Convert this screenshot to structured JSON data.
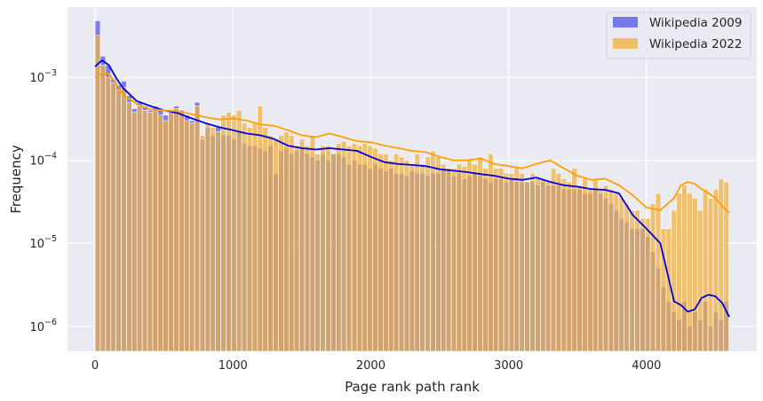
{
  "chart_data": {
    "type": "histogram",
    "title": "",
    "xlabel": "Page rank path rank",
    "ylabel": "Frequency",
    "xlim": [
      -200,
      4800
    ],
    "ylim": [
      5e-07,
      0.007
    ],
    "yscale": "log",
    "grid": true,
    "legend_placement": "top-right",
    "x_ticks": [
      {
        "value": 0,
        "label": "0"
      },
      {
        "value": 1000,
        "label": "1000"
      },
      {
        "value": 2000,
        "label": "2000"
      },
      {
        "value": 3000,
        "label": "3000"
      },
      {
        "value": 4000,
        "label": "4000"
      }
    ],
    "y_ticks": [
      {
        "value": 1e-06,
        "base": "10",
        "exp": "−6"
      },
      {
        "value": 1e-05,
        "base": "10",
        "exp": "−5"
      },
      {
        "value": 0.0001,
        "base": "10",
        "exp": "−4"
      },
      {
        "value": 0.001,
        "base": "10",
        "exp": "−3"
      }
    ],
    "bins": {
      "start": 0,
      "width": 38,
      "count": 121
    },
    "series": [
      {
        "name": "Wikipedia 2009",
        "color": "#6a6af0",
        "line_color": "#0000e0",
        "values": [
          0.0048,
          0.0018,
          0.0014,
          0.00095,
          0.0008,
          0.0009,
          0.0006,
          0.00042,
          0.0005,
          0.00045,
          0.0004,
          0.00045,
          0.0004,
          0.00035,
          0.0004,
          0.00045,
          0.0004,
          0.00035,
          0.0003,
          0.0005,
          0.00018,
          0.00025,
          0.0002,
          0.00025,
          0.0002,
          0.0002,
          0.00018,
          0.00022,
          0.00016,
          0.00015,
          0.00015,
          0.00014,
          0.00013,
          0.00015,
          7e-05,
          0.00013,
          0.00014,
          0.00012,
          0.00013,
          0.00014,
          0.00012,
          0.00011,
          0.0001,
          0.00012,
          0.0001,
          0.00012,
          0.00012,
          0.00011,
          9e-05,
          0.0001,
          9e-05,
          9e-05,
          8e-05,
          9e-05,
          8e-05,
          7.5e-05,
          8e-05,
          7e-05,
          7e-05,
          6.5e-05,
          7.5e-05,
          7e-05,
          7e-05,
          6.5e-05,
          7e-05,
          7e-05,
          8e-05,
          8e-05,
          6.5e-05,
          7e-05,
          6e-05,
          6.5e-05,
          7e-05,
          6.5e-05,
          6e-05,
          5.5e-05,
          6e-05,
          6e-05,
          5.5e-05,
          6e-05,
          5.5e-05,
          5.5e-05,
          5.5e-05,
          5.5e-05,
          5e-05,
          5.5e-05,
          5e-05,
          5e-05,
          5e-05,
          4.5e-05,
          4.5e-05,
          4.5e-05,
          4.5e-05,
          4e-05,
          4e-05,
          4.5e-05,
          4e-05,
          3.5e-05,
          3e-05,
          2.5e-05,
          2e-05,
          1.8e-05,
          1.5e-05,
          1.5e-05,
          1.5e-05,
          1.2e-05,
          8e-06,
          5e-06,
          3e-06,
          2e-06,
          1.5e-06,
          1.2e-06,
          2e-06,
          1e-06,
          1.5e-06,
          1.2e-06,
          2e-06,
          1e-06,
          1.5e-06,
          1.2e-06,
          2e-06
        ]
      },
      {
        "name": "Wikipedia 2022",
        "color": "#f0b240",
        "line_color": "#ffa000",
        "values": [
          0.0032,
          0.0014,
          0.001,
          0.00085,
          0.0007,
          0.00075,
          0.0005,
          0.00038,
          0.00045,
          0.0004,
          0.00038,
          0.0004,
          0.00035,
          0.0003,
          0.00038,
          0.00042,
          0.00038,
          0.0003,
          0.00028,
          0.00045,
          0.0002,
          0.00028,
          0.00025,
          0.00022,
          0.00035,
          0.00038,
          0.00035,
          0.0004,
          0.00028,
          0.00025,
          0.00028,
          0.00045,
          0.00025,
          0.0002,
          0.00018,
          0.0002,
          0.00022,
          0.0002,
          0.00015,
          0.00018,
          0.00015,
          0.0002,
          0.00012,
          0.00015,
          0.00015,
          0.00012,
          0.00016,
          0.00017,
          0.00015,
          0.00016,
          0.00015,
          0.00016,
          0.00015,
          0.00014,
          0.00012,
          0.00012,
          0.0001,
          0.00012,
          0.00011,
          0.0001,
          9e-05,
          0.00012,
          9e-05,
          0.00011,
          0.00013,
          0.00011,
          9e-05,
          8e-05,
          8e-05,
          9e-05,
          8.5e-05,
          0.0001,
          9e-05,
          0.00011,
          8e-05,
          0.00012,
          8e-05,
          8e-05,
          7e-05,
          7e-05,
          8.5e-05,
          7e-05,
          5.5e-05,
          7e-05,
          6e-05,
          6e-05,
          5.5e-05,
          8e-05,
          7e-05,
          6e-05,
          5.5e-05,
          8e-05,
          5e-05,
          6e-05,
          4.5e-05,
          6e-05,
          4.5e-05,
          5e-05,
          4.5e-05,
          4e-05,
          3.5e-05,
          3e-05,
          2.5e-05,
          2.5e-05,
          2e-05,
          2e-05,
          3e-05,
          4e-05,
          1.5e-05,
          1.5e-05,
          2.5e-05,
          4e-05,
          5e-05,
          4e-05,
          3.5e-05,
          2.5e-05,
          4.5e-05,
          3.5e-05,
          4.5e-05,
          6e-05,
          5.5e-05
        ]
      }
    ],
    "kde": {
      "x": [
        0,
        50,
        100,
        150,
        200,
        300,
        400,
        500,
        600,
        700,
        800,
        900,
        1000,
        1100,
        1200,
        1300,
        1400,
        1500,
        1600,
        1700,
        1800,
        1900,
        2000,
        2100,
        2200,
        2300,
        2400,
        2500,
        2600,
        2700,
        2800,
        2900,
        3000,
        3100,
        3200,
        3300,
        3400,
        3500,
        3600,
        3700,
        3800,
        3900,
        4000,
        4100,
        4200,
        4250,
        4300,
        4350,
        4400,
        4450,
        4500,
        4550,
        4600
      ],
      "series": [
        {
          "name": "Wikipedia 2009",
          "values": [
            0.00135,
            0.0016,
            0.0014,
            0.001,
            0.00075,
            0.00052,
            0.00045,
            0.0004,
            0.00037,
            0.00032,
            0.00028,
            0.00025,
            0.00023,
            0.00021,
            0.0002,
            0.00018,
            0.00015,
            0.00014,
            0.000135,
            0.00014,
            0.000135,
            0.00013,
            0.00011,
            9.5e-05,
            9e-05,
            8.8e-05,
            8.5e-05,
            7.8e-05,
            7.5e-05,
            7.2e-05,
            6.8e-05,
            6.5e-05,
            6e-05,
            5.8e-05,
            6.2e-05,
            5.5e-05,
            5e-05,
            4.8e-05,
            4.5e-05,
            4.4e-05,
            4e-05,
            2.2e-05,
            1.5e-05,
            1e-05,
            2e-06,
            1.8e-06,
            1.5e-06,
            1.6e-06,
            2.2e-06,
            2.4e-06,
            2.3e-06,
            1.9e-06,
            1.3e-06
          ]
        },
        {
          "name": "Wikipedia 2022",
          "values": [
            0.001,
            0.0011,
            0.0011,
            0.00085,
            0.00062,
            0.00048,
            0.00041,
            0.0004,
            0.00039,
            0.00036,
            0.00033,
            0.00031,
            0.00032,
            0.0003,
            0.00027,
            0.00026,
            0.00023,
            0.0002,
            0.00019,
            0.00021,
            0.00019,
            0.00017,
            0.000165,
            0.00015,
            0.00014,
            0.00013,
            0.000125,
            0.00011,
            0.0001,
            0.0001,
            0.000105,
            9e-05,
            8.5e-05,
            8e-05,
            9e-05,
            0.0001,
            8e-05,
            6.5e-05,
            5.8e-05,
            6e-05,
            5e-05,
            3.8e-05,
            2.7e-05,
            2.5e-05,
            3.5e-05,
            5e-05,
            5.5e-05,
            5.2e-05,
            4.5e-05,
            4e-05,
            3.5e-05,
            2.8e-05,
            2.3e-05
          ]
        }
      ]
    }
  }
}
